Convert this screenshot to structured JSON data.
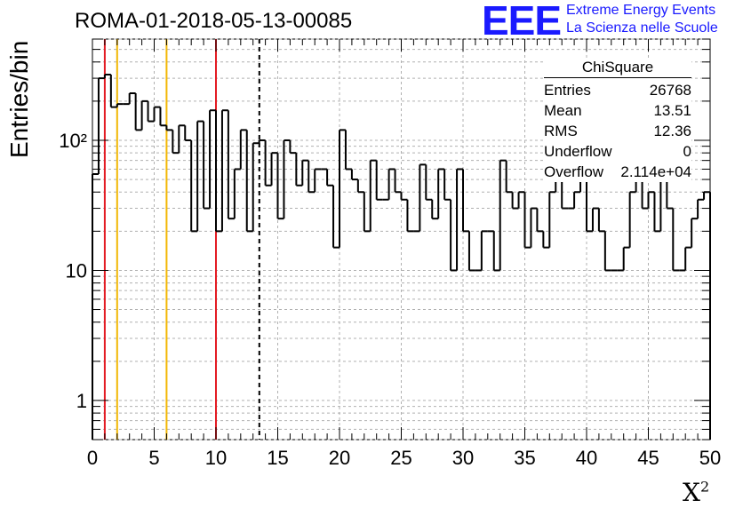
{
  "title": "ROMA-01-2018-05-13-00085",
  "logo": {
    "text": "EEE",
    "line1": "Extreme Energy Events",
    "line2": "La Scienza nelle Scuole",
    "color": "#1a1aff"
  },
  "stats": {
    "title": "ChiSquare",
    "rows": [
      {
        "label": "Entries",
        "value": "26768"
      },
      {
        "label": "Mean",
        "value": "13.51"
      },
      {
        "label": "RMS",
        "value": "12.36"
      },
      {
        "label": "Underflow",
        "value": "0"
      },
      {
        "label": "Overflow",
        "value": "2.114e+04"
      }
    ]
  },
  "chart_data": {
    "type": "histogram",
    "title": "ROMA-01-2018-05-13-00085",
    "xlabel": "X",
    "xlabel_sup": "2",
    "ylabel": "Entries/bin",
    "xlim": [
      0,
      50
    ],
    "ylim": [
      0.5,
      600
    ],
    "yscale": "log",
    "grid": true,
    "bin_width": 0.5,
    "x_ticks": [
      0,
      5,
      10,
      15,
      20,
      25,
      30,
      35,
      40,
      45,
      50
    ],
    "y_tick_labels": [
      {
        "value": 1,
        "label": "1"
      },
      {
        "value": 10,
        "label": "10"
      },
      {
        "value": 100,
        "label": "10²"
      }
    ],
    "counts": [
      55,
      300,
      320,
      180,
      190,
      190,
      230,
      120,
      200,
      140,
      180,
      130,
      120,
      80,
      130,
      100,
      20,
      140,
      30,
      170,
      20,
      170,
      25,
      60,
      120,
      20,
      95,
      100,
      45,
      80,
      25,
      100,
      80,
      45,
      70,
      40,
      60,
      60,
      45,
      15,
      120,
      60,
      50,
      40,
      20,
      70,
      35,
      35,
      60,
      40,
      35,
      20,
      20,
      65,
      35,
      25,
      60,
      35,
      10,
      60,
      20,
      10,
      10,
      20,
      20,
      10,
      70,
      40,
      30,
      40,
      15,
      30,
      20,
      15,
      40,
      60,
      30,
      30,
      40,
      60,
      20,
      30,
      20,
      10,
      10,
      10,
      15,
      40,
      60,
      30,
      40,
      20,
      60,
      30,
      10,
      10,
      15,
      25,
      35,
      40
    ],
    "vlines": [
      {
        "x": 1,
        "color": "#e31b23",
        "style": "solid"
      },
      {
        "x": 2,
        "color": "#f2b705",
        "style": "solid"
      },
      {
        "x": 6,
        "color": "#f2b705",
        "style": "solid"
      },
      {
        "x": 10,
        "color": "#e31b23",
        "style": "solid"
      },
      {
        "x": 13.51,
        "color": "#000000",
        "style": "dashed"
      }
    ]
  }
}
